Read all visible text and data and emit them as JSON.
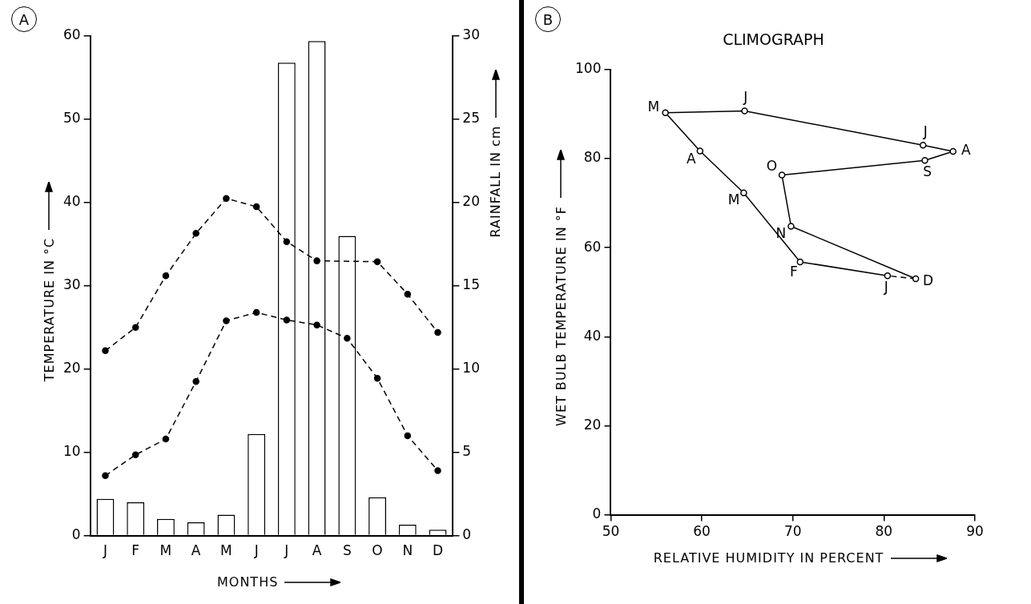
{
  "chart_data": [
    {
      "type": "bar",
      "annotations": [
        "A"
      ],
      "xlabel": "MONTHS",
      "ylabel": "TEMPERATURE IN °C",
      "y2label": "RAINFALL IN cm",
      "categories": [
        "J",
        "F",
        "M",
        "A",
        "M",
        "J",
        "J",
        "A",
        "S",
        "O",
        "N",
        "D"
      ],
      "series": [
        {
          "type": "bar",
          "axis": "y2",
          "color": "#ffffff",
          "values": [
            2.2,
            2.0,
            1.0,
            0.8,
            1.25,
            6.1,
            28.4,
            29.7,
            18.0,
            2.3,
            0.65,
            0.35
          ]
        },
        {
          "type": "line",
          "color": "#000000",
          "values": [
            22.2,
            25.0,
            31.2,
            36.3,
            40.5,
            39.5,
            35.3,
            33.0,
            null,
            32.9,
            29.0,
            24.4
          ]
        },
        {
          "type": "line",
          "color": "#000000",
          "values": [
            7.2,
            9.7,
            11.6,
            18.5,
            25.8,
            26.8,
            25.9,
            25.3,
            23.7,
            18.9,
            12.0,
            7.8
          ]
        }
      ],
      "ylim": [
        0,
        60
      ],
      "yticks": [
        0,
        10,
        20,
        30,
        40,
        50,
        60
      ],
      "y2lim": [
        0,
        30
      ],
      "y2ticks": [
        0,
        5,
        10,
        15,
        20,
        25,
        30
      ],
      "grid": false,
      "legend": false,
      "marker": "circle",
      "line_style": "dashed"
    },
    {
      "type": "line",
      "title": "CLIMOGRAPH",
      "xlabel": "RELATIVE HUMIDITY IN PERCENT",
      "ylabel": "WET BULB TEMPERATURE IN °F",
      "annotations": [
        "B",
        {
          "text": "J",
          "x": 80.4,
          "y": 53.7
        },
        {
          "text": "F",
          "x": 70.8,
          "y": 56.8
        },
        {
          "text": "M",
          "x": 64.6,
          "y": 72.3
        },
        {
          "text": "A",
          "x": 59.8,
          "y": 81.7
        },
        {
          "text": "M",
          "x": 56.0,
          "y": 90.3
        },
        {
          "text": "J",
          "x": 64.7,
          "y": 90.7
        },
        {
          "text": "J",
          "x": 84.3,
          "y": 83.0
        },
        {
          "text": "A",
          "x": 87.6,
          "y": 81.6
        },
        {
          "text": "S",
          "x": 84.5,
          "y": 79.6
        },
        {
          "text": "O",
          "x": 68.8,
          "y": 76.3
        },
        {
          "text": "N",
          "x": 69.8,
          "y": 64.8
        },
        {
          "text": "D",
          "x": 83.5,
          "y": 53.0
        }
      ],
      "series": [
        {
          "color": "#000000",
          "x": [
            80.4,
            70.8,
            64.6,
            59.8,
            56.0,
            64.7,
            84.3,
            87.6,
            84.5,
            68.8,
            69.8,
            83.5
          ],
          "values": [
            53.7,
            56.8,
            72.3,
            81.7,
            90.3,
            90.7,
            83.0,
            81.6,
            79.6,
            76.3,
            64.8,
            53.0
          ]
        },
        {
          "color": "#000000",
          "line_style": "dashed",
          "marker": "none",
          "x": [
            83.5,
            80.4
          ],
          "values": [
            53.0,
            53.7
          ]
        }
      ],
      "xlim": [
        50,
        90
      ],
      "xticks": [
        50,
        60,
        70,
        80,
        90
      ],
      "ylim": [
        0,
        100
      ],
      "yticks": [
        0,
        20,
        40,
        60,
        80,
        100
      ],
      "grid": false,
      "legend": false,
      "marker": "circle",
      "line_style": "solid"
    }
  ]
}
